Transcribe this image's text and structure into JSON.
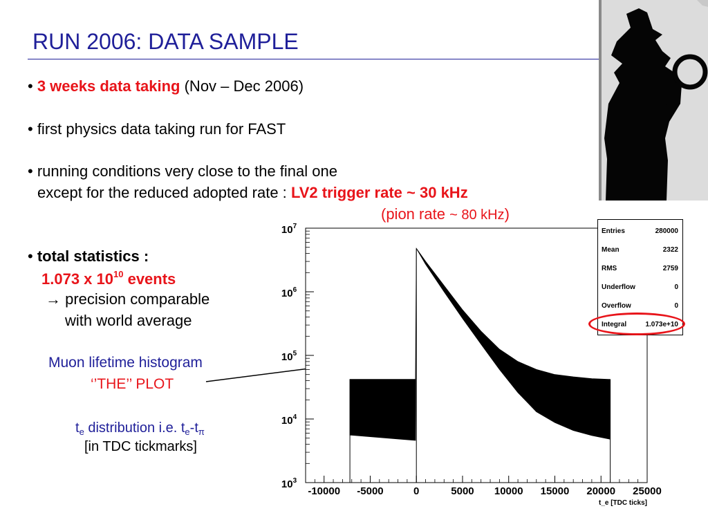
{
  "slide": {
    "title": "RUN 2006:  DATA SAMPLE",
    "bullets": {
      "b1_bullet": "•",
      "b1_bold": "3 weeks data taking",
      "b1_rest": "(Nov – Dec 2006)",
      "b2": "• first physics data taking run for FAST",
      "b3_line1": "• running conditions very close to the final one",
      "b3_line2_prefix": "except for the reduced adopted rate :",
      "b3_line2_bold": "LV2 trigger rate ~ 30 kHz",
      "b3_line3_a": "(pion rate",
      "b3_line3_b": "~ 80 kHz",
      "b3_line3_c": ")",
      "b4_bullet": "•",
      "b4_bold": "total statistics :",
      "b4_events_base": "1.073 x 10",
      "b4_events_exp": "10",
      "b4_events_unit": "events",
      "b4_arrow": "→",
      "b4_line3": "precision comparable",
      "b4_line4": "with world average"
    },
    "captions": {
      "histo_label": "Muon lifetime histogram",
      "the_plot": "‘’THE’’ PLOT",
      "dist_t1": "t",
      "dist_sub1": "e",
      "dist_mid": " distribution i.e. t",
      "dist_sub2": "e",
      "dist_dash": "-t",
      "dist_sub3": "π",
      "tdc": "[in TDC tickmarks]"
    },
    "stats": {
      "entries_label": "Entries",
      "entries_value": "280000",
      "mean_label": "Mean",
      "mean_value": "2322",
      "rms_label": "RMS",
      "rms_value": "2759",
      "underflow_label": "Underflow",
      "underflow_value": "0",
      "overflow_label": "Overflow",
      "overflow_value": "0",
      "integral_label": "Integral",
      "integral_value": "1.073e+10"
    }
  },
  "chart_data": {
    "type": "area",
    "title": "",
    "xlabel": "t_e [TDC ticks]",
    "ylabel": "",
    "xlim": [
      -12000,
      25000
    ],
    "ylim": [
      1000,
      10000000
    ],
    "yscale": "log",
    "xticks": [
      -10000,
      -5000,
      0,
      5000,
      10000,
      15000,
      20000,
      25000
    ],
    "xtick_labels": [
      "-10000",
      "-5000",
      "0",
      "5000",
      "10000",
      "15000",
      "20000",
      "25000"
    ],
    "yticks": [
      1000,
      10000,
      100000,
      1000000,
      10000000
    ],
    "ytick_labels_base": [
      "10",
      "10",
      "10",
      "10",
      "10"
    ],
    "ytick_labels_exp": [
      "3",
      "4",
      "5",
      "6",
      "7"
    ],
    "band_upper_envelope": {
      "x": [
        -7200,
        -100,
        0,
        1000,
        3000,
        5000,
        7000,
        9000,
        11000,
        13000,
        15000,
        17000,
        19000,
        21000
      ],
      "y": [
        42000,
        42000,
        4800000,
        3000000,
        1250000,
        520000,
        240000,
        125000,
        80000,
        60000,
        50000,
        46000,
        43000,
        42000
      ]
    },
    "band_lower_envelope": {
      "x": [
        -7200,
        -100,
        0,
        1000,
        3000,
        5000,
        7000,
        9000,
        11000,
        13000,
        15000,
        17000,
        19000,
        21000
      ],
      "y": [
        5600,
        4600,
        4800000,
        2700000,
        1000000,
        380000,
        150000,
        60000,
        26000,
        13000,
        8800,
        6600,
        5500,
        4800
      ]
    }
  }
}
